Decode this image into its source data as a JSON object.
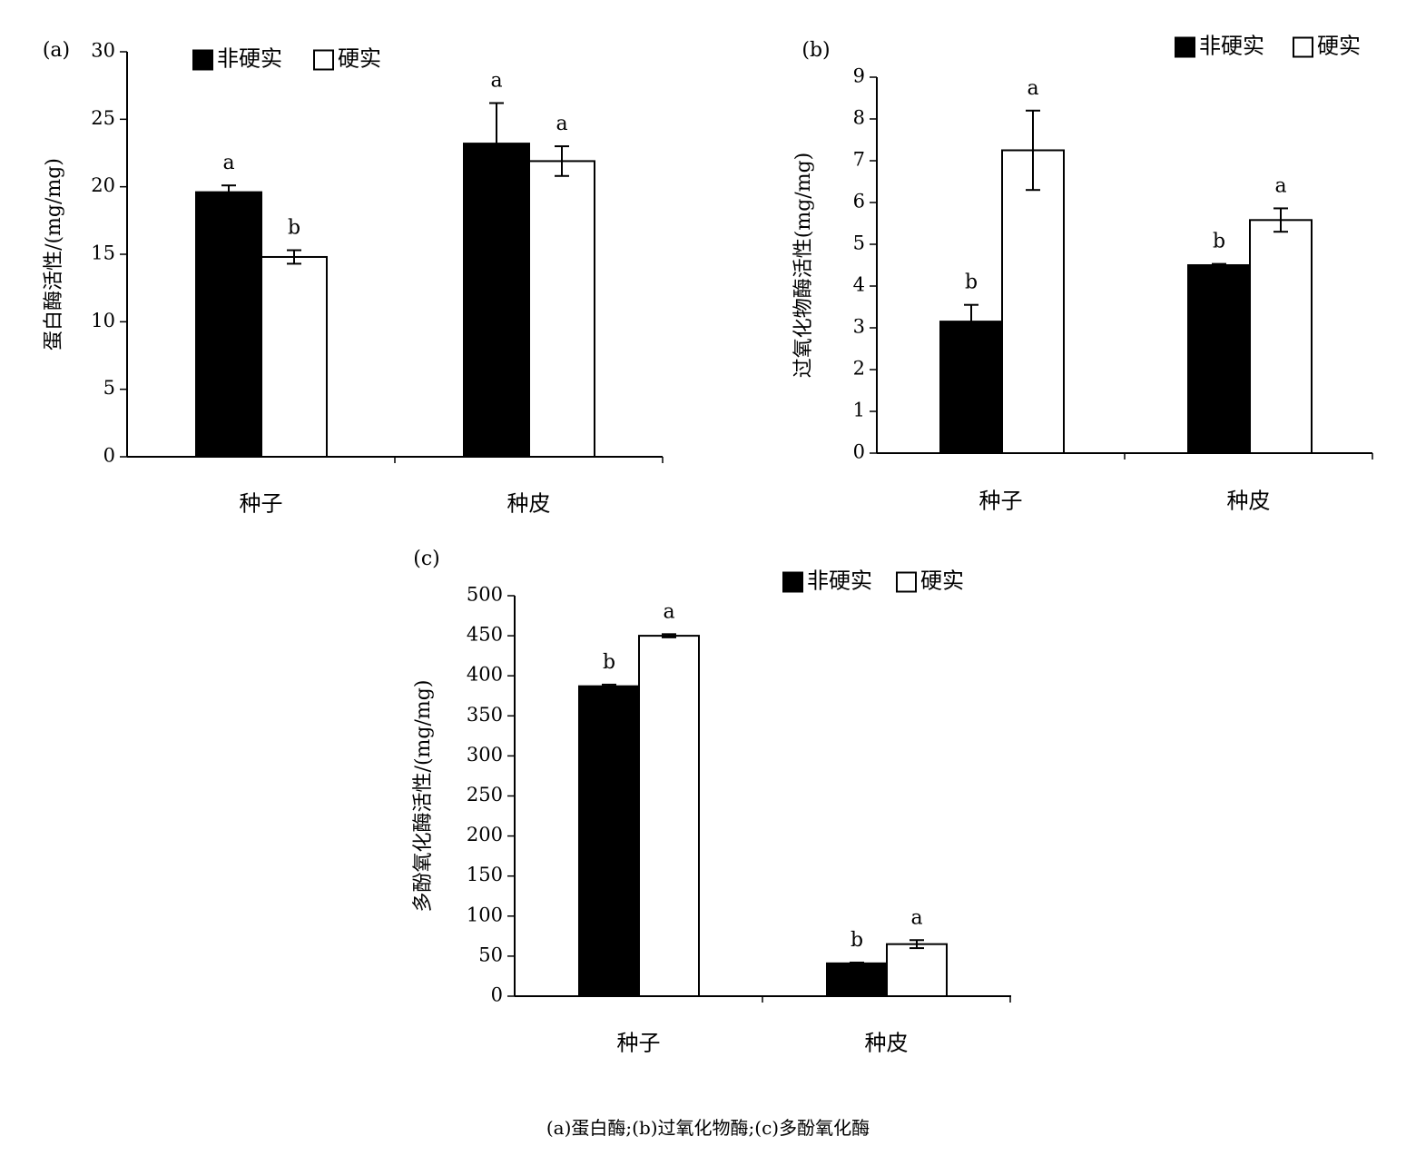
{
  "caption": "(a)蛋白酶;(b)过氧化物酶;(c)多酚氧化酶",
  "colors": {
    "series_fill": [
      "#000000",
      "#ffffff"
    ],
    "stroke": "#000000"
  },
  "chart_data": [
    {
      "type": "bar",
      "panel_label": "(a)",
      "title": "",
      "ylabel": "蛋白酶活性/(mg/mg)",
      "xlabel": "",
      "categories": [
        "种子",
        "种皮"
      ],
      "ylim": [
        0,
        30
      ],
      "yticks": [
        0,
        5,
        10,
        15,
        20,
        25,
        30
      ],
      "legend_position": "top-left",
      "grid": false,
      "series": [
        {
          "name": "非硬实",
          "values": [
            19.6,
            23.2
          ],
          "errors": [
            0.5,
            3.0
          ],
          "letters": [
            "a",
            "a"
          ]
        },
        {
          "name": "硬实",
          "values": [
            14.8,
            21.9
          ],
          "errors": [
            0.5,
            1.1
          ],
          "letters": [
            "b",
            "a"
          ]
        }
      ]
    },
    {
      "type": "bar",
      "panel_label": "(b)",
      "title": "",
      "ylabel": "过氧化物酶活性(mg/mg)",
      "xlabel": "",
      "categories": [
        "种子",
        "种皮"
      ],
      "ylim": [
        0,
        9
      ],
      "yticks": [
        0,
        1,
        2,
        3,
        4,
        5,
        6,
        7,
        8,
        9
      ],
      "legend_position": "top-right",
      "grid": false,
      "series": [
        {
          "name": "非硬实",
          "values": [
            3.15,
            4.5
          ],
          "errors": [
            0.4,
            0.03
          ],
          "letters": [
            "b",
            "b"
          ]
        },
        {
          "name": "硬实",
          "values": [
            7.25,
            5.58
          ],
          "errors": [
            0.95,
            0.28
          ],
          "letters": [
            "a",
            "a"
          ]
        }
      ]
    },
    {
      "type": "bar",
      "panel_label": "(c)",
      "title": "",
      "ylabel": "多酚氧化酶活性/(mg/mg)",
      "xlabel": "",
      "categories": [
        "种子",
        "种皮"
      ],
      "ylim": [
        0,
        500
      ],
      "yticks": [
        0,
        50,
        100,
        150,
        200,
        250,
        300,
        350,
        400,
        450,
        500
      ],
      "legend_position": "top-right",
      "grid": false,
      "series": [
        {
          "name": "非硬实",
          "values": [
            387,
            41
          ],
          "errors": [
            2,
            1
          ],
          "letters": [
            "b",
            "b"
          ]
        },
        {
          "name": "硬实",
          "values": [
            450,
            65
          ],
          "errors": [
            2,
            5
          ],
          "letters": [
            "a",
            "a"
          ]
        }
      ]
    }
  ]
}
